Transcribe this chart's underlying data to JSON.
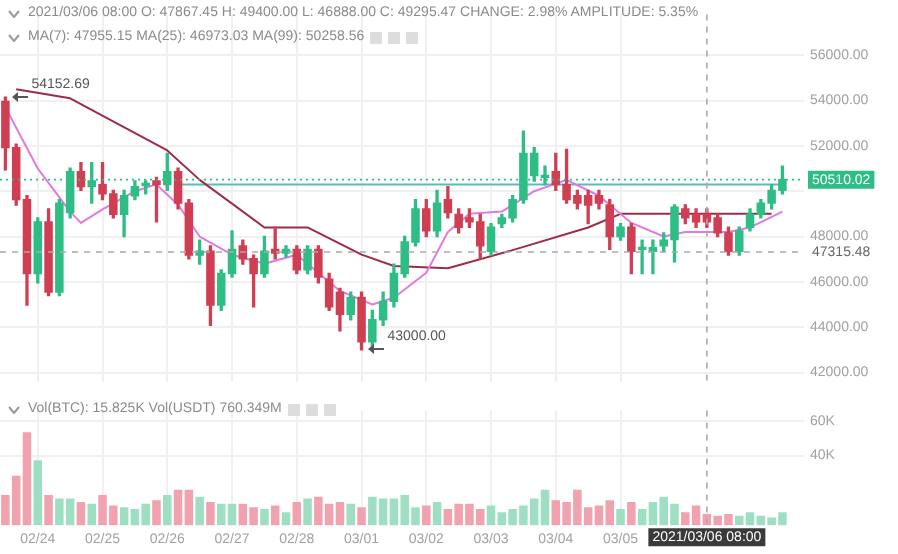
{
  "chart_data": [
    {
      "type": "candlestick",
      "annotations": [
        "2021/03/06 08:00 O: 47867.45 H: 49400.00 L: 46888.00 C: 49295.47 CHANGE: 2.98% AMPLITUDE: 5.35%",
        "MA(7): 47955.15 MA(25): 46973.03 MA(99): 50258.56",
        {
          "text": "54152.69",
          "x": "2021-02-23T12:00",
          "y": 54152.69
        },
        {
          "text": "43000.00",
          "x": "2021-03-01T00:00",
          "y": 43000
        }
      ],
      "x": [
        "2021-02-23T12:00",
        "2021-02-23T16:00",
        "2021-02-23T20:00",
        "2021-02-24T00:00",
        "2021-02-24T04:00",
        "2021-02-24T08:00",
        "2021-02-24T12:00",
        "2021-02-24T16:00",
        "2021-02-24T20:00",
        "2021-02-25T00:00",
        "2021-02-25T04:00",
        "2021-02-25T08:00",
        "2021-02-25T12:00",
        "2021-02-25T16:00",
        "2021-02-25T20:00",
        "2021-02-26T00:00",
        "2021-02-26T04:00",
        "2021-02-26T08:00",
        "2021-02-26T12:00",
        "2021-02-26T16:00",
        "2021-02-26T20:00",
        "2021-02-27T00:00",
        "2021-02-27T04:00",
        "2021-02-27T08:00",
        "2021-02-27T12:00",
        "2021-02-27T16:00",
        "2021-02-27T20:00",
        "2021-02-28T00:00",
        "2021-02-28T04:00",
        "2021-02-28T08:00",
        "2021-02-28T12:00",
        "2021-02-28T16:00",
        "2021-02-28T20:00",
        "2021-03-01T00:00",
        "2021-03-01T04:00",
        "2021-03-01T08:00",
        "2021-03-01T12:00",
        "2021-03-01T16:00",
        "2021-03-01T20:00",
        "2021-03-02T00:00",
        "2021-03-02T04:00",
        "2021-03-02T08:00",
        "2021-03-02T12:00",
        "2021-03-02T16:00",
        "2021-03-02T20:00",
        "2021-03-03T00:00",
        "2021-03-03T04:00",
        "2021-03-03T08:00",
        "2021-03-03T12:00",
        "2021-03-03T16:00",
        "2021-03-03T20:00",
        "2021-03-04T00:00",
        "2021-03-04T04:00",
        "2021-03-04T08:00",
        "2021-03-04T12:00",
        "2021-03-04T16:00",
        "2021-03-04T20:00",
        "2021-03-05T00:00",
        "2021-03-05T04:00",
        "2021-03-05T08:00",
        "2021-03-05T12:00",
        "2021-03-05T16:00",
        "2021-03-05T20:00",
        "2021-03-06T00:00",
        "2021-03-06T04:00",
        "2021-03-06T08:00",
        "2021-03-06T12:00",
        "2021-03-06T16:00",
        "2021-03-06T20:00",
        "2021-03-07T00:00",
        "2021-03-07T04:00",
        "2021-03-07T08:00",
        "2021-03-07T12:00"
      ],
      "ohlc": [
        [
          53960,
          54152.69,
          50940,
          51920
        ],
        [
          51920,
          52080,
          49390,
          49630
        ],
        [
          49630,
          49800,
          44980,
          46370
        ],
        [
          46370,
          48820,
          45960,
          48650
        ],
        [
          48650,
          49220,
          45390,
          45550
        ],
        [
          45550,
          49630,
          45390,
          49470
        ],
        [
          49060,
          51020,
          48820,
          50860
        ],
        [
          50860,
          51260,
          50040,
          50200
        ],
        [
          50200,
          51260,
          49470,
          50450
        ],
        [
          50290,
          51260,
          49630,
          49880
        ],
        [
          49880,
          50040,
          48820,
          48980
        ],
        [
          48980,
          50040,
          48000,
          49800
        ],
        [
          49800,
          50450,
          49630,
          50200
        ],
        [
          50250,
          50450,
          49880,
          50290
        ],
        [
          50450,
          50610,
          48650,
          50290
        ],
        [
          50290,
          51670,
          50040,
          50860
        ],
        [
          50860,
          51020,
          49220,
          49470
        ],
        [
          49470,
          49630,
          47020,
          47180
        ],
        [
          47180,
          47840,
          46780,
          47350
        ],
        [
          47350,
          47590,
          44080,
          44980
        ],
        [
          44980,
          46530,
          44740,
          46370
        ],
        [
          46370,
          48250,
          46210,
          47430
        ],
        [
          47590,
          47840,
          46780,
          47020
        ],
        [
          47020,
          47180,
          44900,
          46370
        ],
        [
          46370,
          48000,
          46210,
          47350
        ],
        [
          47430,
          48410,
          47020,
          47270
        ],
        [
          47270,
          47590,
          47100,
          47430
        ],
        [
          47430,
          47590,
          46370,
          46530
        ],
        [
          46530,
          47590,
          46370,
          47430
        ],
        [
          47430,
          47590,
          45960,
          46210
        ],
        [
          46120,
          46370,
          44740,
          44900
        ],
        [
          45550,
          45710,
          43840,
          44570
        ],
        [
          44570,
          45550,
          44330,
          45310
        ],
        [
          45310,
          45550,
          43000,
          43350
        ],
        [
          43350,
          44740,
          43190,
          44330
        ],
        [
          44330,
          45550,
          44080,
          45140
        ],
        [
          45140,
          46780,
          44900,
          46370
        ],
        [
          46370,
          48000,
          46210,
          47760
        ],
        [
          47760,
          49630,
          47590,
          49220
        ],
        [
          49220,
          49630,
          48000,
          48250
        ],
        [
          48250,
          50040,
          48000,
          49470
        ],
        [
          49630,
          50200,
          48820,
          49060
        ],
        [
          48980,
          49220,
          48160,
          48410
        ],
        [
          48820,
          49220,
          48410,
          48650
        ],
        [
          48650,
          48980,
          47020,
          47590
        ],
        [
          47350,
          48570,
          47180,
          48410
        ],
        [
          48570,
          48980,
          48410,
          48820
        ],
        [
          48820,
          49800,
          48650,
          49630
        ],
        [
          49630,
          52650,
          49470,
          51670
        ],
        [
          50690,
          51920,
          50450,
          51670
        ],
        [
          50610,
          51100,
          50290,
          50690
        ],
        [
          50860,
          51670,
          50040,
          50290
        ],
        [
          50290,
          51840,
          49470,
          49630
        ],
        [
          49800,
          50040,
          49220,
          49470
        ],
        [
          49800,
          50040,
          48570,
          49390
        ],
        [
          49800,
          50040,
          49220,
          49470
        ],
        [
          49390,
          49630,
          47430,
          48000
        ],
        [
          48000,
          48570,
          47840,
          48410
        ],
        [
          48410,
          48570,
          46370,
          47350
        ],
        [
          47430,
          47840,
          46370,
          47510
        ],
        [
          47350,
          47840,
          46370,
          47510
        ],
        [
          47590,
          48160,
          47350,
          47840
        ],
        [
          47867.45,
          49400,
          46888,
          49295.47
        ],
        [
          49220,
          49390,
          48570,
          48820
        ],
        [
          48980,
          49220,
          48410,
          48650
        ],
        [
          48980,
          49220,
          48410,
          48650
        ],
        [
          48820,
          48980,
          48000,
          48160
        ],
        [
          48160,
          48410,
          47180,
          47350
        ],
        [
          47350,
          48410,
          47180,
          48250
        ],
        [
          48410,
          49220,
          48250,
          48980
        ],
        [
          48980,
          49630,
          48820,
          49470
        ],
        [
          49470,
          50290,
          49220,
          50040
        ],
        [
          50040,
          51100,
          49880,
          50510.02
        ]
      ],
      "colors": [
        "#cf3e52",
        "#cf3e52",
        "#cf3e52",
        "#2ebd85",
        "#cf3e52",
        "#2ebd85",
        "#2ebd85",
        "#cf3e52",
        "#2ebd85",
        "#cf3e52",
        "#cf3e52",
        "#2ebd85",
        "#2ebd85",
        "#2ebd85",
        "#cf3e52",
        "#2ebd85",
        "#cf3e52",
        "#cf3e52",
        "#2ebd85",
        "#cf3e52",
        "#2ebd85",
        "#2ebd85",
        "#cf3e52",
        "#cf3e52",
        "#2ebd85",
        "#cf3e52",
        "#2ebd85",
        "#cf3e52",
        "#2ebd85",
        "#cf3e52",
        "#cf3e52",
        "#cf3e52",
        "#2ebd85",
        "#cf3e52",
        "#2ebd85",
        "#2ebd85",
        "#2ebd85",
        "#2ebd85",
        "#2ebd85",
        "#cf3e52",
        "#2ebd85",
        "#cf3e52",
        "#cf3e52",
        "#cf3e52",
        "#cf3e52",
        "#2ebd85",
        "#2ebd85",
        "#2ebd85",
        "#2ebd85",
        "#2ebd85",
        "#2ebd85",
        "#cf3e52",
        "#cf3e52",
        "#cf3e52",
        "#cf3e52",
        "#cf3e52",
        "#cf3e52",
        "#2ebd85",
        "#cf3e52",
        "#2ebd85",
        "#2ebd85",
        "#2ebd85",
        "#2ebd85",
        "#cf3e52",
        "#cf3e52",
        "#cf3e52",
        "#cf3e52",
        "#cf3e52",
        "#2ebd85",
        "#2ebd85",
        "#2ebd85",
        "#2ebd85",
        "#2ebd85"
      ],
      "series": [
        {
          "type": "line",
          "color": "#e07be0",
          "x": [
            "2021-02-23T12:00",
            "2021-02-24T00:00",
            "2021-02-24T12:00",
            "2021-02-24T16:00",
            "2021-02-25T00:00",
            "2021-02-25T12:00",
            "2021-02-25T20:00",
            "2021-02-26T04:00",
            "2021-02-26T12:00",
            "2021-02-27T00:00",
            "2021-02-27T12:00",
            "2021-02-28T00:00",
            "2021-02-28T08:00",
            "2021-02-28T16:00",
            "2021-03-01T04:00",
            "2021-03-01T12:00",
            "2021-03-02T00:00",
            "2021-03-02T08:00",
            "2021-03-02T16:00",
            "2021-03-03T04:00",
            "2021-03-03T16:00",
            "2021-03-04T04:00",
            "2021-03-04T16:00",
            "2021-03-05T04:00",
            "2021-03-05T16:00",
            "2021-03-06T00:00",
            "2021-03-06T16:00",
            "2021-03-07T00:00",
            "2021-03-07T12:00"
          ],
          "values": [
            53700,
            51000,
            49100,
            48600,
            49200,
            50000,
            50300,
            49400,
            48000,
            47200,
            46800,
            47200,
            46400,
            45600,
            45000,
            45300,
            46400,
            48200,
            49000,
            49100,
            50000,
            50500,
            49800,
            48600,
            48000,
            48200,
            48200,
            48400,
            49100
          ]
        },
        {
          "type": "line",
          "color": "#9c2d48",
          "x": [
            "2021-02-23T16:00",
            "2021-02-24T12:00",
            "2021-02-26T00:00",
            "2021-02-26T12:00",
            "2021-02-27T12:00",
            "2021-02-28T04:00",
            "2021-03-01T00:00",
            "2021-03-01T12:00",
            "2021-03-02T08:00",
            "2021-03-03T08:00",
            "2021-03-04T12:00",
            "2021-03-05T00:00",
            "2021-03-05T20:00",
            "2021-03-07T08:00"
          ],
          "values": [
            54500,
            54100,
            51800,
            50500,
            48400,
            48400,
            47200,
            46700,
            46600,
            47400,
            48400,
            49000,
            49000,
            49000
          ]
        },
        {
          "type": "line",
          "color": "#62b8be",
          "x": [
            "2021-02-26T04:00",
            "2021-03-02T04:00",
            "2021-03-04T16:00",
            "2021-03-07T12:00"
          ],
          "values": [
            50300,
            50300,
            50300,
            50300
          ]
        }
      ],
      "xlim": [
        "2021-02-23T10:00",
        "2021-03-07T20:00"
      ],
      "xticks": [
        {
          "value": "2021-02-24",
          "label": null
        },
        {
          "value": "2021-02-25",
          "label": null
        },
        {
          "value": "2021-02-26",
          "label": null
        },
        {
          "value": "2021-02-27",
          "label": null
        },
        {
          "value": "2021-02-28",
          "label": null
        },
        {
          "value": "2021-03-01",
          "label": null
        },
        {
          "value": "2021-03-02",
          "label": null
        },
        {
          "value": "2021-03-03",
          "label": null
        },
        {
          "value": "2021-03-04",
          "label": null
        },
        {
          "value": "2021-03-05",
          "label": null
        }
      ],
      "ylim": [
        41600,
        57800
      ],
      "yticks": [
        {
          "value": 42000,
          "label": "42000.00"
        },
        {
          "value": 44000,
          "label": "44000.00"
        },
        {
          "value": 46000,
          "label": "46000.00"
        },
        {
          "value": 48000,
          "label": "48000.00"
        },
        {
          "value": 50000,
          "label": null
        },
        {
          "value": 52000,
          "label": "52000.00"
        },
        {
          "value": 54000,
          "label": "54000.00"
        },
        {
          "value": 56000,
          "label": "56000.00"
        }
      ],
      "grid": true,
      "tick_labels": "y",
      "ref_lines": [
        {
          "axis": "x",
          "value": "2021-03-06T08:00",
          "line_style": "dashed"
        },
        {
          "axis": "y",
          "value": 47315.48,
          "label": "47315.48",
          "line_style": "dashed"
        },
        {
          "axis": "y",
          "value": 50510.02,
          "label": "50510.02",
          "line_style": "dotted",
          "color": "#2ebd85"
        }
      ]
    },
    {
      "type": "bar",
      "annotations": [
        "Vol(BTC): 15.825K Vol(USDT) 760.349M"
      ],
      "x": [
        "2021-02-23T12:00",
        "2021-02-23T16:00",
        "2021-02-23T20:00",
        "2021-02-24T00:00",
        "2021-02-24T04:00",
        "2021-02-24T08:00",
        "2021-02-24T12:00",
        "2021-02-24T16:00",
        "2021-02-24T20:00",
        "2021-02-25T00:00",
        "2021-02-25T04:00",
        "2021-02-25T08:00",
        "2021-02-25T12:00",
        "2021-02-25T16:00",
        "2021-02-25T20:00",
        "2021-02-26T00:00",
        "2021-02-26T04:00",
        "2021-02-26T08:00",
        "2021-02-26T12:00",
        "2021-02-26T16:00",
        "2021-02-26T20:00",
        "2021-02-27T00:00",
        "2021-02-27T04:00",
        "2021-02-27T08:00",
        "2021-02-27T12:00",
        "2021-02-27T16:00",
        "2021-02-27T20:00",
        "2021-02-28T00:00",
        "2021-02-28T04:00",
        "2021-02-28T08:00",
        "2021-02-28T12:00",
        "2021-02-28T16:00",
        "2021-02-28T20:00",
        "2021-03-01T00:00",
        "2021-03-01T04:00",
        "2021-03-01T08:00",
        "2021-03-01T12:00",
        "2021-03-01T16:00",
        "2021-03-01T20:00",
        "2021-03-02T00:00",
        "2021-03-02T04:00",
        "2021-03-02T08:00",
        "2021-03-02T12:00",
        "2021-03-02T16:00",
        "2021-03-02T20:00",
        "2021-03-03T00:00",
        "2021-03-03T04:00",
        "2021-03-03T08:00",
        "2021-03-03T12:00",
        "2021-03-03T16:00",
        "2021-03-03T20:00",
        "2021-03-04T00:00",
        "2021-03-04T04:00",
        "2021-03-04T08:00",
        "2021-03-04T12:00",
        "2021-03-04T16:00",
        "2021-03-04T20:00",
        "2021-03-05T00:00",
        "2021-03-05T04:00",
        "2021-03-05T08:00",
        "2021-03-05T12:00",
        "2021-03-05T16:00",
        "2021-03-05T20:00",
        "2021-03-06T00:00",
        "2021-03-06T04:00",
        "2021-03-06T08:00",
        "2021-03-06T12:00",
        "2021-03-06T16:00",
        "2021-03-06T20:00",
        "2021-03-07T00:00",
        "2021-03-07T04:00",
        "2021-03-07T08:00",
        "2021-03-07T12:00"
      ],
      "values": [
        17000,
        28000,
        53000,
        37000,
        17000,
        15000,
        15000,
        13000,
        12000,
        17000,
        11000,
        10000,
        9000,
        12000,
        14000,
        17000,
        20000,
        20000,
        16000,
        13000,
        12000,
        12000,
        12000,
        10000,
        9000,
        11000,
        7000,
        13000,
        15000,
        16000,
        12000,
        13000,
        12000,
        10000,
        16000,
        15000,
        15000,
        17000,
        10000,
        11000,
        13000,
        9000,
        12000,
        12000,
        9000,
        11000,
        7000,
        9000,
        11000,
        15000,
        20000,
        14000,
        13000,
        20000,
        10000,
        11000,
        14000,
        9000,
        13000,
        9000,
        13000,
        16000,
        12000,
        7000,
        11000,
        6000,
        5000,
        6000,
        5000,
        7000,
        5000,
        4000,
        7000
      ],
      "colors": [
        "#f0a3ae",
        "#f0a3ae",
        "#f0a3ae",
        "#9edfc3",
        "#f0a3ae",
        "#9edfc3",
        "#9edfc3",
        "#f0a3ae",
        "#9edfc3",
        "#f0a3ae",
        "#f0a3ae",
        "#9edfc3",
        "#9edfc3",
        "#9edfc3",
        "#f0a3ae",
        "#9edfc3",
        "#f0a3ae",
        "#f0a3ae",
        "#9edfc3",
        "#f0a3ae",
        "#9edfc3",
        "#9edfc3",
        "#f0a3ae",
        "#f0a3ae",
        "#9edfc3",
        "#f0a3ae",
        "#9edfc3",
        "#f0a3ae",
        "#9edfc3",
        "#f0a3ae",
        "#f0a3ae",
        "#f0a3ae",
        "#9edfc3",
        "#f0a3ae",
        "#9edfc3",
        "#9edfc3",
        "#9edfc3",
        "#9edfc3",
        "#9edfc3",
        "#f0a3ae",
        "#9edfc3",
        "#f0a3ae",
        "#f0a3ae",
        "#f0a3ae",
        "#f0a3ae",
        "#9edfc3",
        "#9edfc3",
        "#9edfc3",
        "#9edfc3",
        "#9edfc3",
        "#9edfc3",
        "#f0a3ae",
        "#f0a3ae",
        "#f0a3ae",
        "#f0a3ae",
        "#f0a3ae",
        "#f0a3ae",
        "#9edfc3",
        "#f0a3ae",
        "#9edfc3",
        "#9edfc3",
        "#9edfc3",
        "#9edfc3",
        "#f0a3ae",
        "#f0a3ae",
        "#f0a3ae",
        "#f0a3ae",
        "#f0a3ae",
        "#9edfc3",
        "#9edfc3",
        "#9edfc3",
        "#9edfc3",
        "#9edfc3"
      ],
      "xlim": [
        "2021-02-23T10:00",
        "2021-03-07T20:00"
      ],
      "xticks": [
        {
          "value": "2021-02-24",
          "label": "02/24"
        },
        {
          "value": "2021-02-25",
          "label": "02/25"
        },
        {
          "value": "2021-02-26",
          "label": "02/26"
        },
        {
          "value": "2021-02-27",
          "label": "02/27"
        },
        {
          "value": "2021-02-28",
          "label": "02/28"
        },
        {
          "value": "2021-03-01",
          "label": "03/01"
        },
        {
          "value": "2021-03-02",
          "label": "03/02"
        },
        {
          "value": "2021-03-03",
          "label": "03/03"
        },
        {
          "value": "2021-03-04",
          "label": "03/04"
        },
        {
          "value": "2021-03-05",
          "label": "03/05"
        }
      ],
      "ylim": [
        0,
        66000
      ],
      "yticks": [
        {
          "value": 40000,
          "label": "40K"
        },
        {
          "value": 60000,
          "label": "60K"
        }
      ],
      "grid": true,
      "ref_lines": [
        {
          "axis": "x",
          "value": "2021-03-06T08:00",
          "label": "2021/03/06 08:00",
          "line_style": "dashed"
        }
      ]
    }
  ]
}
